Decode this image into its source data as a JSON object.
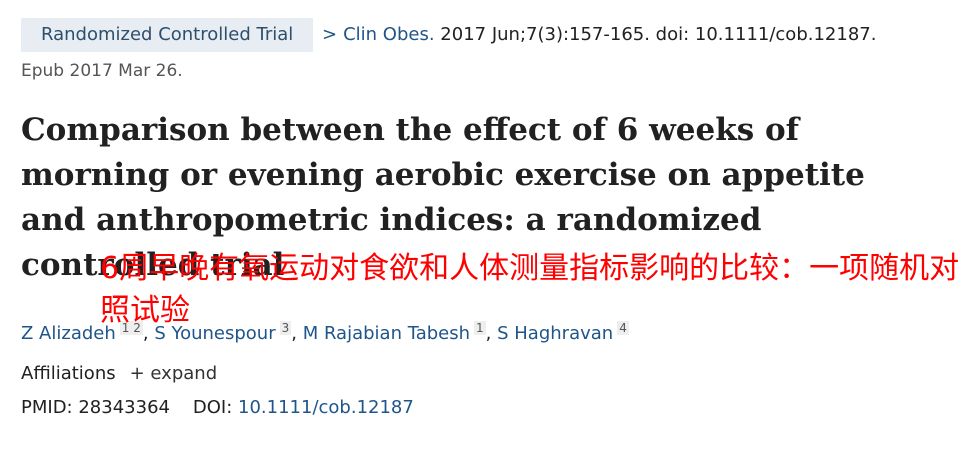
{
  "badge": "Randomized Controlled Trial",
  "citation": {
    "journal": "Clin Obes.",
    "details": "2017 Jun;7(3):157-165. doi: 10.1111/cob.12187.",
    "epub": "Epub 2017 Mar 26."
  },
  "title": "Comparison between the effect of 6 weeks of morning or evening aerobic exercise on appetite and anthropometric indices: a randomized controlled trial",
  "translation": "6周早晚有氧运动对食欲和人体测量指标影响的比较：一项随机对照试验",
  "authors": [
    {
      "name": "Z Alizadeh",
      "affiliations": "1 2"
    },
    {
      "name": "S Younespour",
      "affiliations": "3"
    },
    {
      "name": "M Rajabian Tabesh",
      "affiliations": "1"
    },
    {
      "name": "S Haghravan",
      "affiliations": "4"
    }
  ],
  "affiliations": {
    "label": "Affiliations",
    "toggle": "expand"
  },
  "ids": {
    "pmid_label": "PMID:",
    "pmid": "28343364",
    "doi_label": "DOI:",
    "doi": "10.1111/cob.12187"
  }
}
